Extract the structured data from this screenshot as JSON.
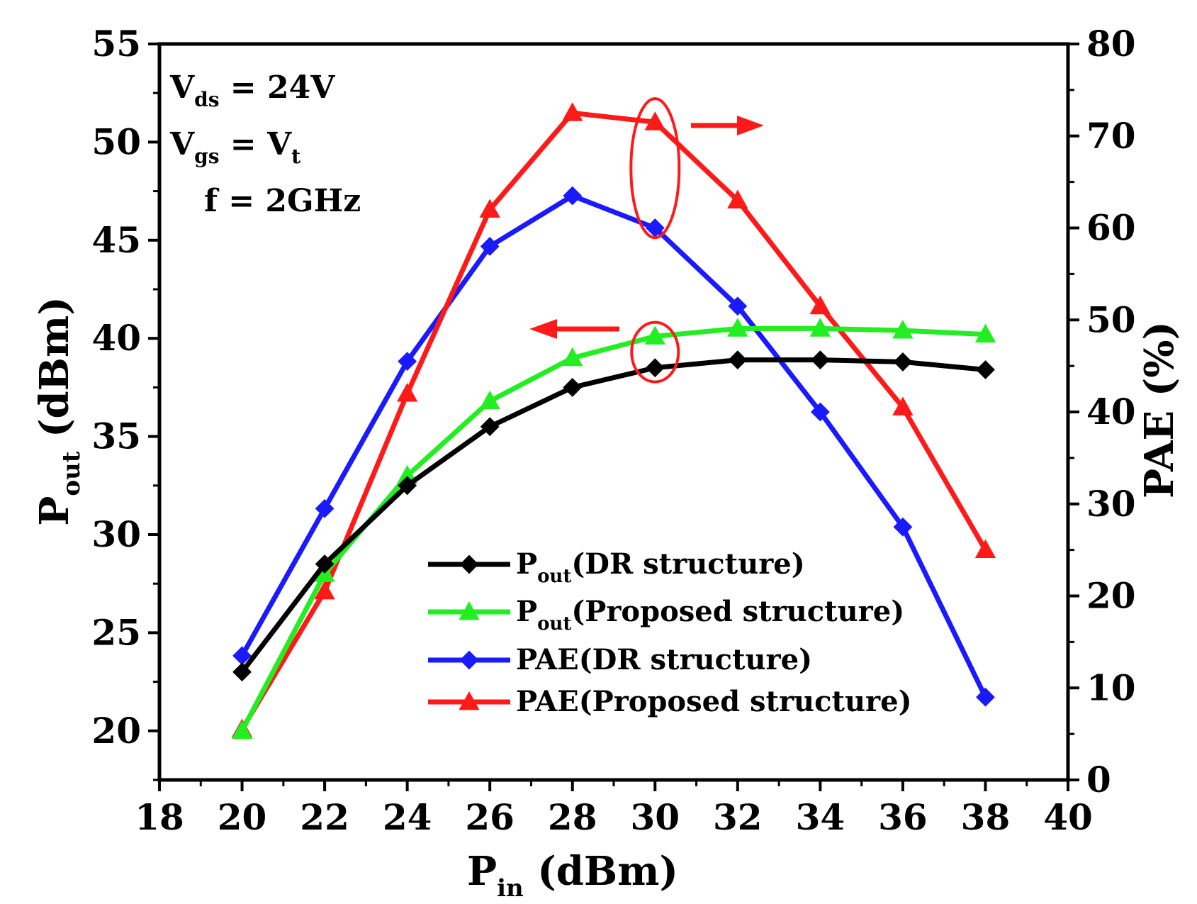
{
  "chart_data": {
    "type": "line",
    "x_axis": {
      "label_main": "P",
      "label_sub": "in",
      "label_unit": " (dBm)",
      "range": [
        18,
        40
      ],
      "ticks": [
        "18",
        "20",
        "22",
        "24",
        "26",
        "28",
        "30",
        "32",
        "34",
        "36",
        "38",
        "40"
      ]
    },
    "y_left": {
      "label_main": "P",
      "label_sub": "out",
      "label_unit": " (dBm)",
      "range": [
        17.5,
        55
      ],
      "ticks": [
        "20",
        "25",
        "30",
        "35",
        "40",
        "45",
        "50",
        "55"
      ]
    },
    "y_right": {
      "label": "PAE (%)",
      "range": [
        0,
        80
      ],
      "ticks": [
        "0",
        "10",
        "20",
        "30",
        "40",
        "50",
        "60",
        "70",
        "80"
      ]
    },
    "x": [
      20,
      22,
      24,
      26,
      28,
      30,
      32,
      34,
      36,
      38
    ],
    "series": [
      {
        "name": "Pout(DR structure)",
        "legend_main": "P",
        "legend_sub": "out",
        "legend_rest": "(DR structure)",
        "axis": "left",
        "marker": "diamond",
        "color": "#000000",
        "values": [
          23.0,
          28.5,
          32.5,
          35.5,
          37.5,
          38.5,
          38.9,
          38.9,
          38.8,
          38.4
        ]
      },
      {
        "name": "Pout(Proposed structure)",
        "legend_main": "P",
        "legend_sub": "out",
        "legend_rest": "(Proposed structure)",
        "axis": "left",
        "marker": "triangle",
        "color": "#22ee22",
        "values": [
          20.0,
          28.0,
          33.0,
          36.8,
          39.0,
          40.1,
          40.5,
          40.5,
          40.4,
          40.2
        ]
      },
      {
        "name": "PAE(DR structure)",
        "legend_main": "PAE",
        "legend_sub": "",
        "legend_rest": "(DR structure)",
        "axis": "right",
        "marker": "diamond",
        "color": "#1a1aff",
        "values": [
          13.5,
          29.5,
          45.5,
          58.0,
          63.5,
          60.0,
          51.5,
          40.0,
          27.5,
          9.0
        ]
      },
      {
        "name": "PAE(Proposed structure)",
        "legend_main": "PAE",
        "legend_sub": "",
        "legend_rest": "(Proposed structure)",
        "axis": "right",
        "marker": "triangle",
        "color": "#ff1a1a",
        "values": [
          5.5,
          20.5,
          42.0,
          62.0,
          72.5,
          71.5,
          63.0,
          51.5,
          40.5,
          25.0
        ]
      }
    ],
    "annotations": [
      {
        "main": "V",
        "sub": "ds",
        "rest": " = 24V"
      },
      {
        "main": "V",
        "sub": "gs",
        "rest": " = V",
        "sub2": "t"
      },
      {
        "main": "f = 2GHz",
        "sub": "",
        "rest": ""
      }
    ],
    "markers": {
      "ellipse_color": "#ff1a1a",
      "arrow_color": "#ff1a1a"
    }
  }
}
